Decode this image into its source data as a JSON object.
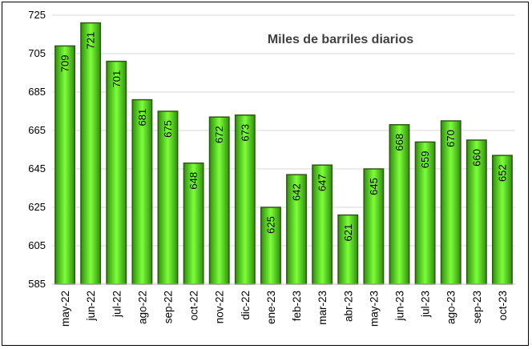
{
  "chart_data": {
    "type": "bar",
    "title": "Miles de barriles diarios",
    "categories": [
      "may-22",
      "jun-22",
      "jul-22",
      "ago-22",
      "sep-22",
      "oct-22",
      "nov-22",
      "dic-22",
      "ene-23",
      "feb-23",
      "mar-23",
      "abr-23",
      "may-23",
      "jun-23",
      "jul-23",
      "ago-23",
      "sep-23",
      "oct-23"
    ],
    "series": [
      {
        "values": [
          709,
          721,
          701,
          681,
          675,
          648,
          672,
          673,
          625,
          642,
          647,
          621,
          645,
          668,
          659,
          670,
          660,
          652
        ]
      }
    ],
    "data_labels": [
      "709",
      "721",
      "701",
      "681",
      "675",
      "648",
      "672",
      "673",
      "625",
      "642",
      "647",
      "621",
      "645",
      "668",
      "659",
      "670",
      "660",
      "652"
    ],
    "ylim": [
      585,
      725
    ],
    "yticks": [
      585,
      605,
      625,
      645,
      665,
      685,
      705,
      725
    ],
    "ytick_labels": [
      "585",
      "605",
      "625",
      "645",
      "665",
      "685",
      "705",
      "725"
    ],
    "grid": true,
    "bar_color": "#66ff33",
    "bar_edge_color": "#2e5a12",
    "xlabel": "",
    "ylabel": ""
  }
}
